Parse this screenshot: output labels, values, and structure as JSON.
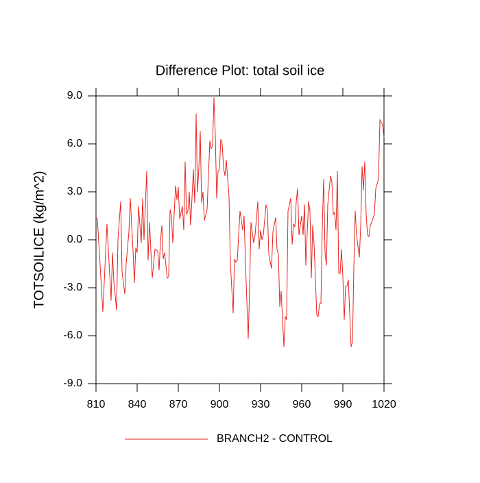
{
  "chart_data": {
    "type": "line",
    "title": "Difference Plot: total soil ice",
    "y_label": "TOTSOILICE  (kg/m^2)",
    "x": [
      810,
      811,
      815,
      818,
      821,
      822,
      823,
      825,
      826,
      828,
      829,
      831,
      832,
      834,
      835,
      837,
      838,
      839,
      840,
      841,
      843,
      844,
      845,
      847,
      848,
      849,
      851,
      853,
      855,
      856,
      857,
      858,
      859,
      860,
      862,
      863,
      864,
      865,
      866,
      868,
      869,
      870,
      871,
      873,
      874,
      875,
      876,
      877,
      878,
      879,
      881,
      882,
      883,
      884,
      885,
      886,
      887,
      888,
      889,
      891,
      893,
      894,
      895,
      896,
      897,
      898,
      899,
      900,
      901,
      902,
      903,
      904,
      905,
      907,
      908,
      910,
      911,
      912,
      913,
      915,
      917,
      918,
      919,
      921,
      922,
      923,
      925,
      926,
      928,
      929,
      930,
      931,
      932,
      934,
      935,
      936,
      938,
      939,
      941,
      942,
      943,
      944,
      945,
      947,
      948,
      949,
      950,
      952,
      953,
      954,
      955,
      956,
      957,
      958,
      960,
      961,
      962,
      963,
      965,
      966,
      967,
      968,
      969,
      971,
      972,
      973,
      974,
      975,
      976,
      977,
      978,
      979,
      981,
      982,
      983,
      984,
      985,
      986,
      987,
      988,
      989,
      990,
      991,
      992,
      993,
      994,
      996,
      997,
      998,
      999,
      1000,
      1002,
      1003,
      1004,
      1005,
      1006,
      1007,
      1008,
      1009,
      1010,
      1011,
      1013,
      1014,
      1016,
      1017,
      1019,
      1020
    ],
    "series": [
      {
        "name": "BRANCH2 - CONTROL",
        "color": "#e8231e",
        "values": [
          1.4,
          1.3,
          -4.5,
          1.0,
          -3.8,
          -0.8,
          -2.6,
          -4.4,
          0,
          2.4,
          -2.0,
          -3.4,
          -1.5,
          0.5,
          2.6,
          -0.7,
          -2.7,
          -0.5,
          -0.8,
          2.1,
          -0.2,
          2.6,
          0,
          4.3,
          -1.3,
          1.1,
          -2.4,
          -0.6,
          -0.7,
          -1.9,
          -0.1,
          0.9,
          -1.2,
          -0.8,
          -2.4,
          -2.3,
          1.9,
          1.5,
          -0.2,
          3.4,
          2.5,
          3.3,
          1.3,
          2.1,
          0.6,
          4.9,
          1.6,
          1.8,
          3.0,
          0.9,
          4.4,
          2.3,
          7.9,
          3.0,
          4.5,
          6.8,
          2.3,
          3.0,
          1.2,
          1.9,
          6.2,
          5.7,
          5.9,
          8.9,
          6.5,
          2.6,
          4.3,
          4.4,
          6.3,
          6.0,
          4.5,
          4.0,
          5.0,
          2.7,
          -1.5,
          -4.6,
          -1.2,
          -1.4,
          -1.3,
          1.8,
          0.6,
          1.5,
          -1.5,
          -6.2,
          -3.0,
          1.1,
          -0.2,
          0.3,
          2.4,
          -0.6,
          0.6,
          0.0,
          0.3,
          2.2,
          1.8,
          -0.9,
          -1.8,
          0.5,
          1.4,
          -0.6,
          -0.9,
          -4.2,
          -3.2,
          -6.7,
          -4.8,
          -5.0,
          1.8,
          2.6,
          -0.3,
          1.0,
          0.8,
          2.4,
          3.2,
          0.3,
          1.5,
          0.3,
          2.2,
          -1.6,
          2.4,
          1.8,
          -2.4,
          0.9,
          -0.3,
          -4.7,
          -4.8,
          -4.0,
          -4.0,
          0.8,
          3.8,
          -0.8,
          -1.6,
          2.2,
          4.0,
          3.6,
          1.6,
          1.7,
          0.6,
          4.3,
          -2.1,
          -2.1,
          -0.6,
          -2.3,
          -5.0,
          -2.9,
          -2.9,
          -2.5,
          -6.7,
          -6.4,
          -1.8,
          1.8,
          0.3,
          -1.1,
          0.8,
          4.6,
          3.1,
          4.9,
          1.6,
          0.3,
          0.2,
          0.9,
          1.1,
          1.6,
          3.2,
          3.8,
          7.5,
          7.2,
          6.4
        ]
      }
    ],
    "xlim": [
      810,
      1020
    ],
    "xticks": [
      810,
      840,
      870,
      900,
      930,
      960,
      990,
      1020
    ],
    "ylim": [
      -9,
      9
    ],
    "yticks": [
      {
        "value": -9,
        "label": "-9.0"
      },
      {
        "value": -6,
        "label": "-6.0"
      },
      {
        "value": -3,
        "label": "-3.0"
      },
      {
        "value": 0,
        "label": "0.0"
      },
      {
        "value": 3,
        "label": "3.0"
      },
      {
        "value": 6,
        "label": "6.0"
      },
      {
        "value": 9,
        "label": "9.0"
      }
    ]
  }
}
